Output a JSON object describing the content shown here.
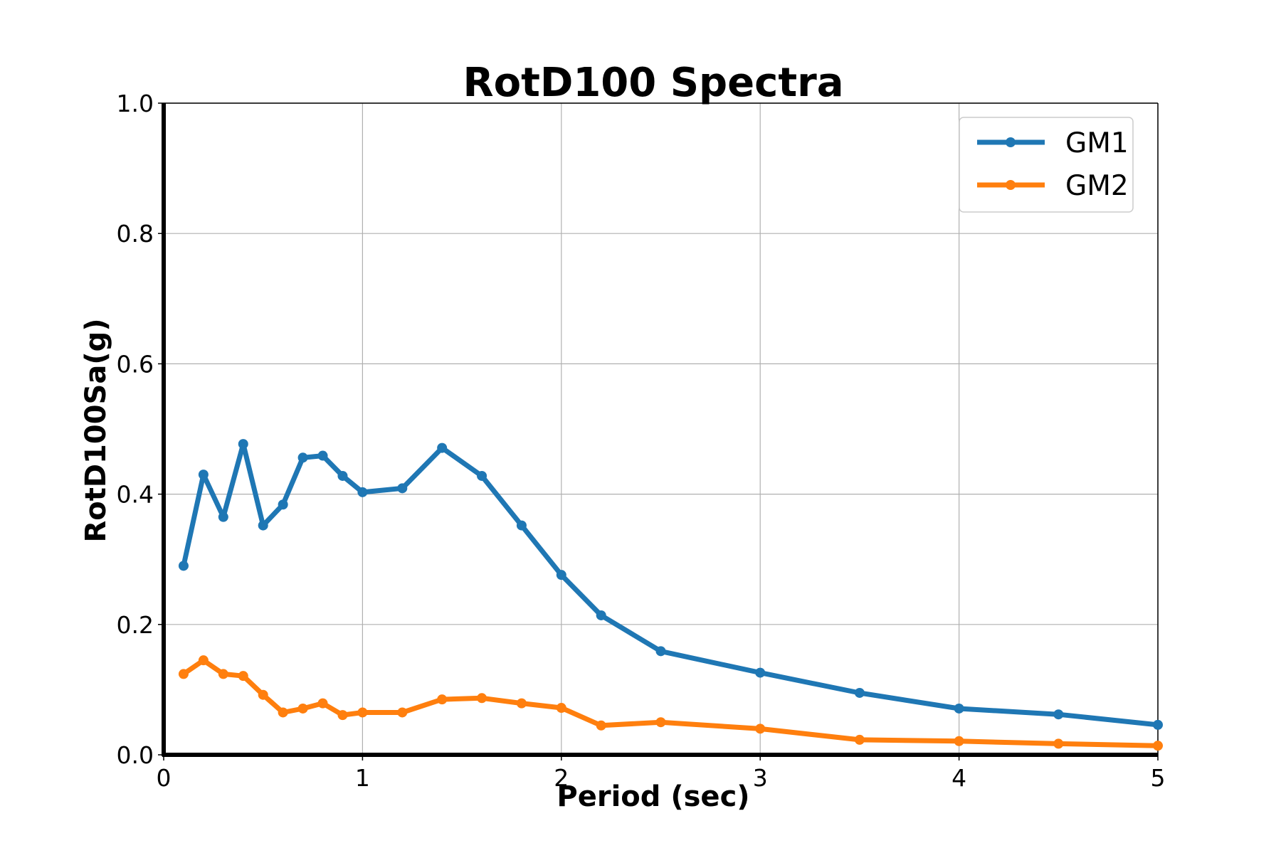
{
  "chart_data": {
    "type": "line",
    "title": "RotD100 Spectra",
    "xlabel": "Period (sec)",
    "ylabel": "RotD100Sa(g)",
    "xlim": [
      0,
      5
    ],
    "ylim": [
      0,
      1.0
    ],
    "xticks": [
      0,
      1,
      2,
      3,
      4,
      5
    ],
    "xtick_labels": [
      "0",
      "1",
      "2",
      "3",
      "4",
      "5"
    ],
    "yticks": [
      0.0,
      0.2,
      0.4,
      0.6,
      0.8,
      1.0
    ],
    "ytick_labels": [
      "0.0",
      "0.2",
      "0.4",
      "0.6",
      "0.8",
      "1.0"
    ],
    "grid": true,
    "legend_position": "top-right",
    "x": [
      0.1,
      0.2,
      0.3,
      0.4,
      0.5,
      0.6,
      0.7,
      0.8,
      0.9,
      1.0,
      1.2,
      1.4,
      1.6,
      1.8,
      2.0,
      2.2,
      2.5,
      3.0,
      3.5,
      4.0,
      4.5,
      5.0
    ],
    "series": [
      {
        "name": "GM1",
        "color": "#1f77b4",
        "values": [
          0.29,
          0.43,
          0.365,
          0.477,
          0.352,
          0.384,
          0.456,
          0.459,
          0.428,
          0.403,
          0.409,
          0.471,
          0.428,
          0.352,
          0.276,
          0.214,
          0.159,
          0.126,
          0.095,
          0.071,
          0.062,
          0.046
        ]
      },
      {
        "name": "GM2",
        "color": "#ff7f0e",
        "values": [
          0.124,
          0.145,
          0.124,
          0.121,
          0.092,
          0.065,
          0.071,
          0.079,
          0.061,
          0.065,
          0.065,
          0.085,
          0.087,
          0.079,
          0.072,
          0.045,
          0.05,
          0.04,
          0.023,
          0.021,
          0.017,
          0.014
        ]
      }
    ]
  }
}
